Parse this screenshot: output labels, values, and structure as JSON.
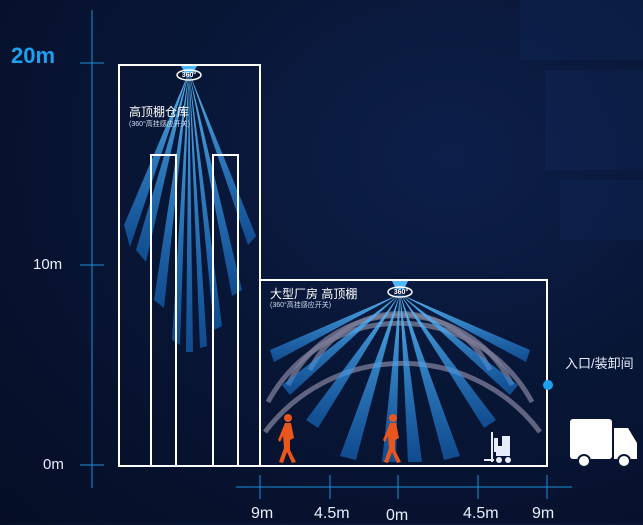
{
  "y_axis": {
    "labels": [
      {
        "text": "20m",
        "highlight": true
      },
      {
        "text": "10m",
        "highlight": false
      },
      {
        "text": "0m",
        "highlight": false
      }
    ]
  },
  "x_axis": {
    "labels": [
      "9m",
      "4.5m",
      "0m",
      "4.5m",
      "9m"
    ]
  },
  "warehouse": {
    "title": "高顶棚仓库",
    "subtitle": "(360°高挂感应开关)",
    "sensor_label": "360°"
  },
  "factory": {
    "title": "大型厂房 高顶棚",
    "subtitle": "(360°高挂感应开关)",
    "sensor_label": "360°"
  },
  "entrance": {
    "label": "入口/装卸间"
  },
  "icons": [
    "person-icon",
    "person-icon",
    "forklift-icon",
    "truck-icon"
  ],
  "colors": {
    "accent": "#1ea0f0",
    "beam": "#1a8de0",
    "person": "#e8561e",
    "outline": "#ffffff"
  }
}
